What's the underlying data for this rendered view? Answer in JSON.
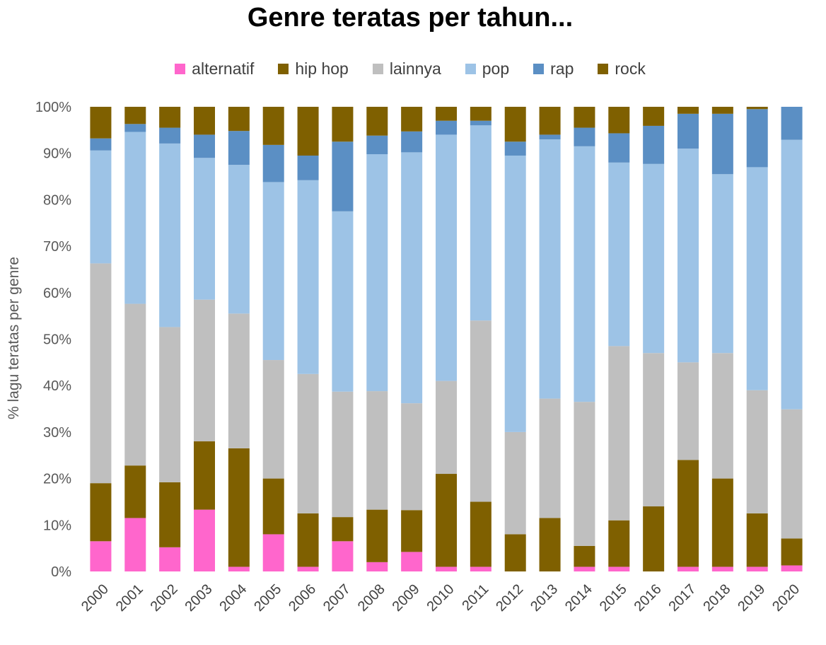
{
  "chart_data": {
    "type": "stacked-bar-100",
    "title": "Genre teratas per tahun...",
    "xlabel": "",
    "ylabel": "% lagu teratas per genre",
    "ylim": [
      0,
      100
    ],
    "yticks": [
      "0%",
      "10%",
      "20%",
      "30%",
      "40%",
      "50%",
      "60%",
      "70%",
      "80%",
      "90%",
      "100%"
    ],
    "legend_position": "top-center",
    "categories": [
      "2000",
      "2001",
      "2002",
      "2003",
      "2004",
      "2005",
      "2006",
      "2007",
      "2008",
      "2009",
      "2010",
      "2011",
      "2012",
      "2013",
      "2014",
      "2015",
      "2016",
      "2017",
      "2018",
      "2019",
      "2020"
    ],
    "series": [
      {
        "name": "alternatif",
        "color": "#ff66cc",
        "values": [
          6.5,
          11.5,
          5.2,
          13.3,
          1.0,
          8.0,
          1.0,
          6.5,
          2.0,
          4.2,
          1.0,
          1.0,
          0,
          0,
          1.0,
          1.0,
          0,
          1.0,
          1.0,
          1.0,
          1.3
        ]
      },
      {
        "name": "hip hop",
        "color": "#7f6000",
        "values": [
          12.5,
          11.3,
          14.0,
          14.7,
          25.5,
          12.0,
          11.5,
          5.2,
          11.3,
          9.0,
          20.0,
          14.0,
          8.0,
          11.5,
          4.5,
          10.0,
          14.0,
          23.0,
          19.0,
          11.5,
          5.8
        ]
      },
      {
        "name": "lainnya",
        "color": "#bfbfbf",
        "values": [
          47.3,
          34.8,
          33.4,
          30.5,
          29.0,
          25.5,
          30.0,
          27.0,
          25.5,
          23.0,
          20.0,
          39.0,
          22.0,
          25.7,
          31.0,
          37.5,
          33.0,
          21.0,
          27.0,
          26.5,
          27.8
        ]
      },
      {
        "name": "pop",
        "color": "#9dc3e6",
        "values": [
          24.3,
          37.0,
          39.5,
          30.5,
          32.0,
          38.3,
          41.7,
          38.8,
          51.0,
          54.0,
          53.0,
          42.0,
          59.5,
          55.8,
          55.0,
          39.5,
          40.7,
          46.0,
          38.5,
          48.0,
          58.0
        ]
      },
      {
        "name": "rap",
        "color": "#5b8fc4",
        "values": [
          2.6,
          1.7,
          3.4,
          5.0,
          7.3,
          8.0,
          5.3,
          15.0,
          4.0,
          4.5,
          3.0,
          1.0,
          3.0,
          1.0,
          4.0,
          6.3,
          8.2,
          7.5,
          13.0,
          12.5,
          7.1
        ]
      },
      {
        "name": "rock",
        "color": "#7f6000",
        "values": [
          6.8,
          3.7,
          4.5,
          6.0,
          5.2,
          8.2,
          10.5,
          7.5,
          6.2,
          5.3,
          3.0,
          3.0,
          7.5,
          6.0,
          4.5,
          5.7,
          4.1,
          1.5,
          1.5,
          0.5,
          0
        ]
      }
    ]
  }
}
